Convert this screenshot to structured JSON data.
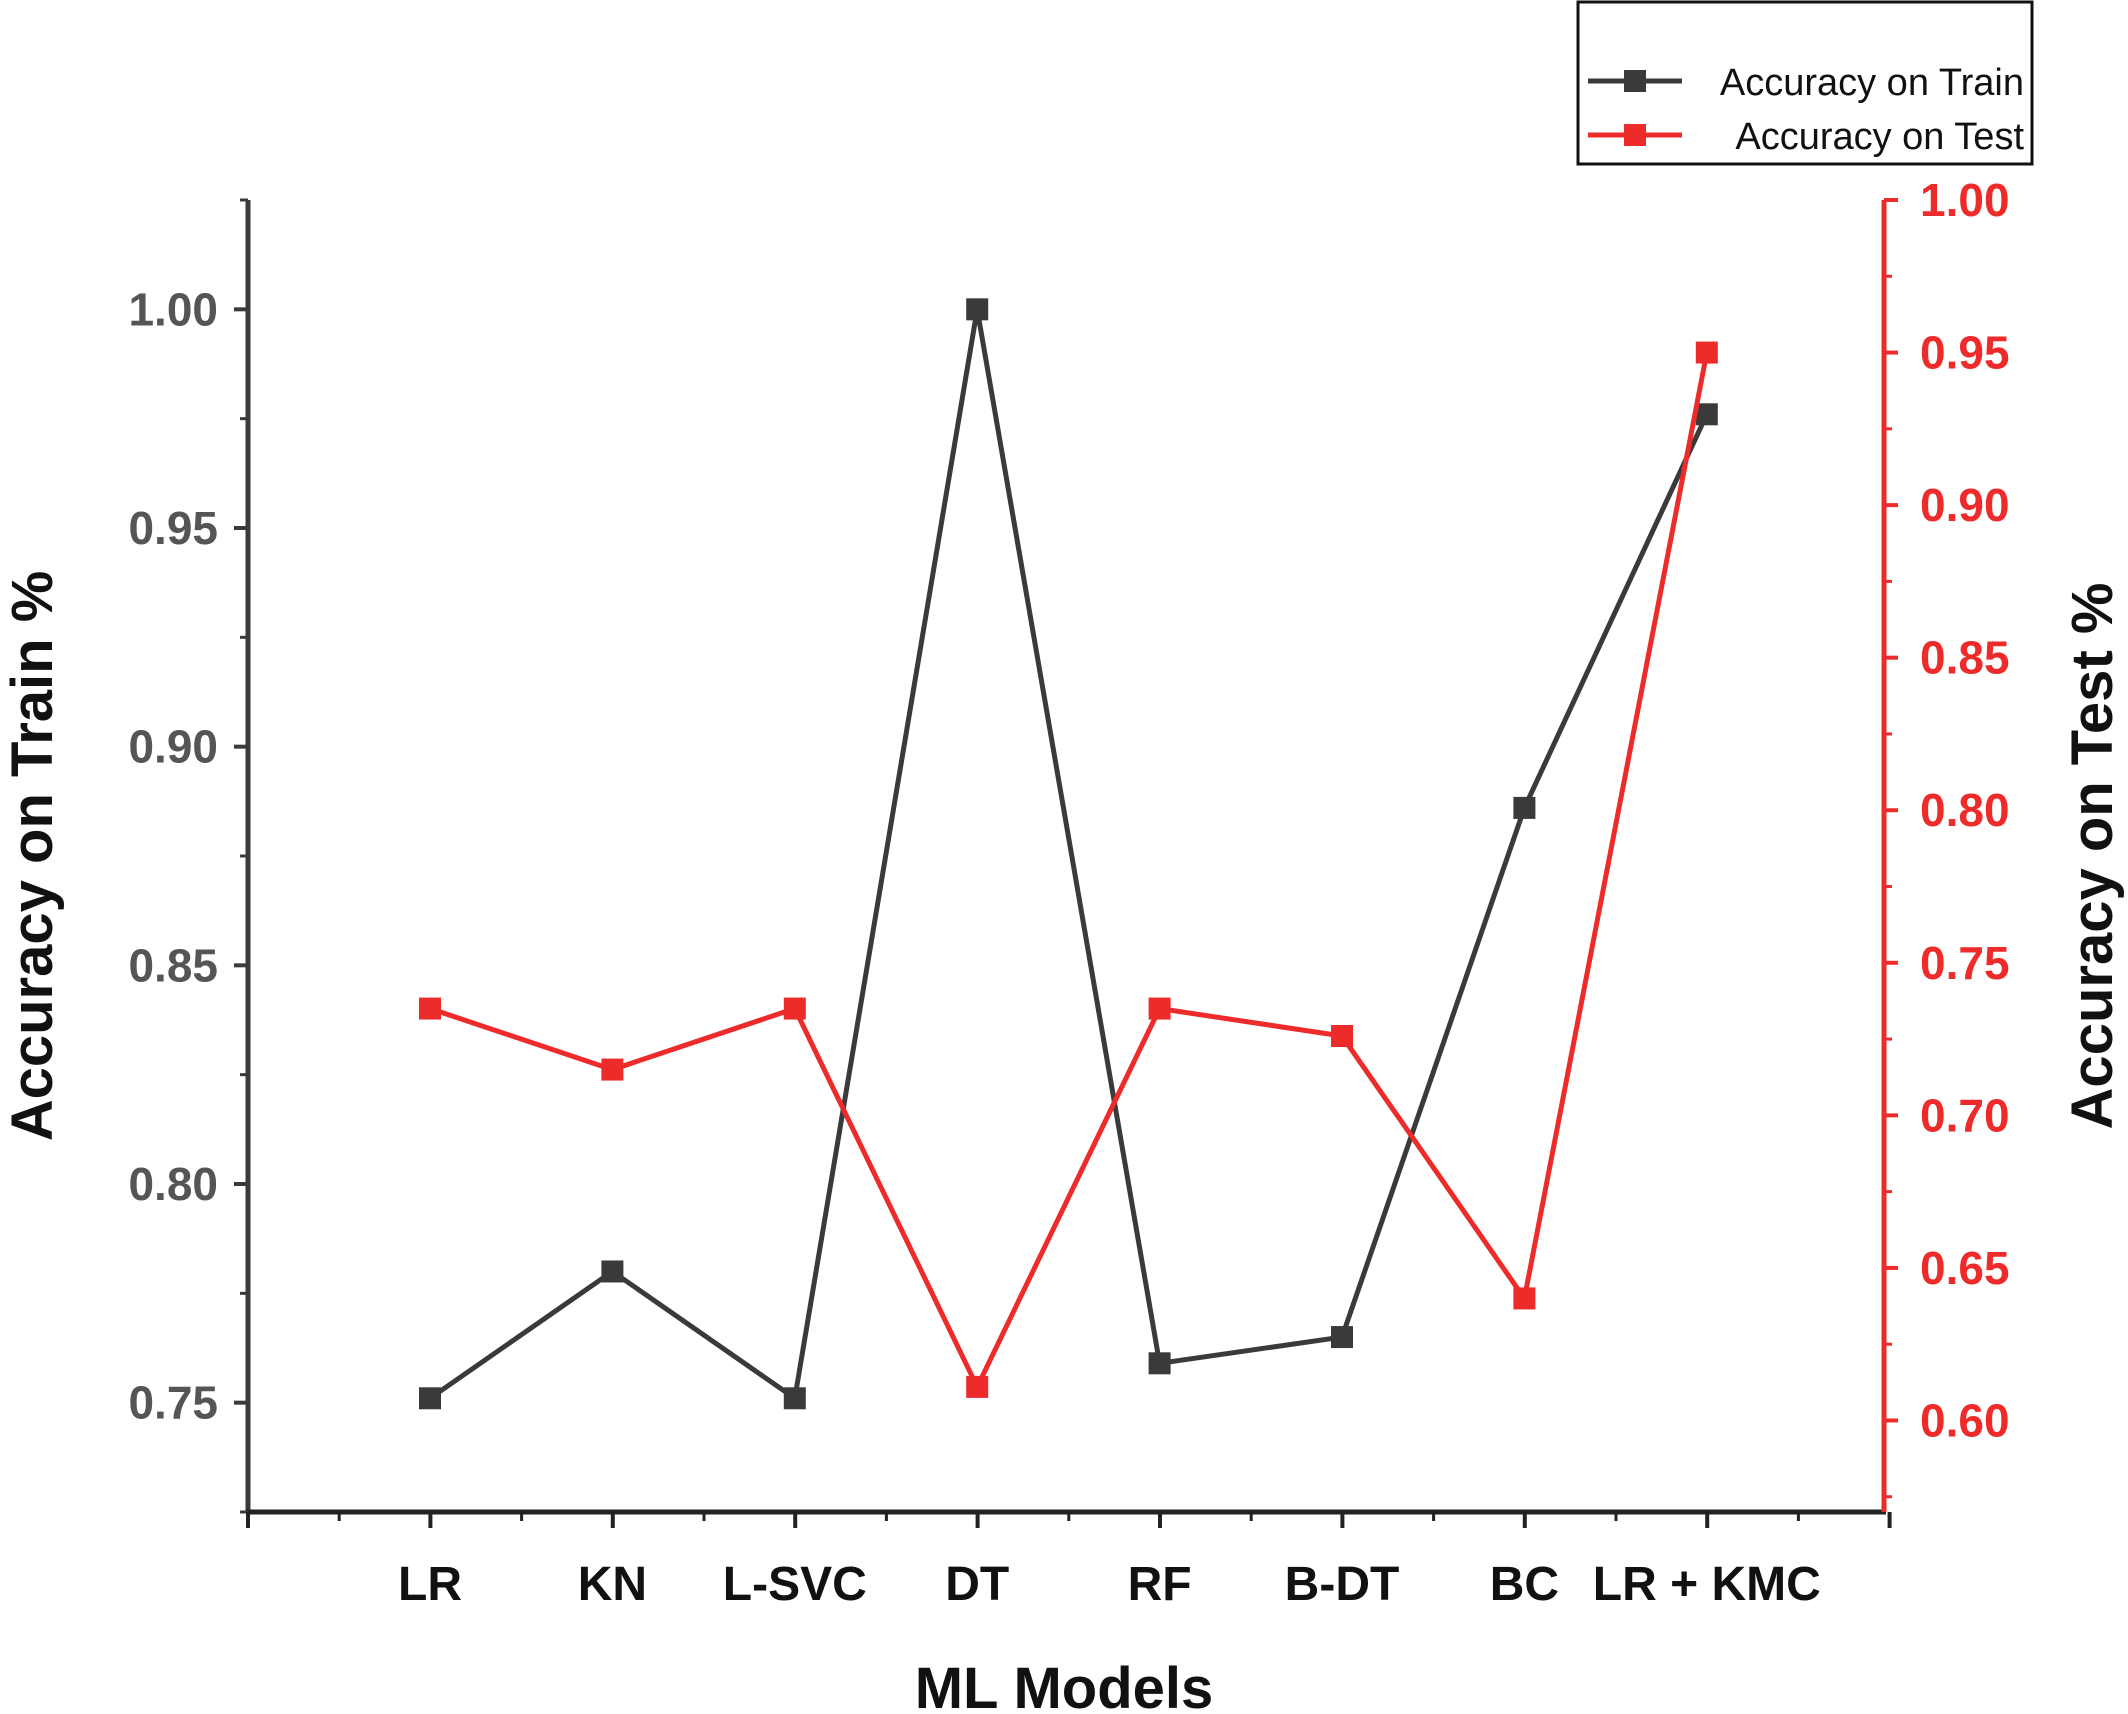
{
  "chart_data": {
    "type": "line",
    "title": "",
    "xlabel": "ML Models",
    "ylabel_left": "Accuracy on Train %",
    "ylabel_right": "Accuracy on Test %",
    "categories": [
      "LR",
      "KN",
      "L-SVC",
      "DT",
      "RF",
      "B-DT",
      "BC",
      "LR + KMC"
    ],
    "ylim_left": [
      0.725,
      1.025
    ],
    "ylim_right": [
      0.57,
      1.0
    ],
    "yticks_left": [
      "0.75",
      "0.80",
      "0.85",
      "0.90",
      "0.95",
      "1.00"
    ],
    "yticks_right": [
      "0.60",
      "0.65",
      "0.70",
      "0.75",
      "0.80",
      "0.85",
      "0.90",
      "0.95",
      "1.00"
    ],
    "series": [
      {
        "name": "Accuracy on Train",
        "axis": "left",
        "color": "#3a3a3a",
        "values": [
          0.751,
          0.78,
          0.751,
          1.0,
          0.759,
          0.765,
          0.886,
          0.976
        ]
      },
      {
        "name": "Accuracy on Test",
        "axis": "right",
        "color": "#ee2b2b",
        "values": [
          0.735,
          0.715,
          0.735,
          0.611,
          0.735,
          0.726,
          0.64,
          0.95
        ]
      }
    ],
    "legend_position": "top-right",
    "grid": false
  },
  "colors": {
    "left_axis": "#3a3a3a",
    "left_tick_text": "#555555",
    "right_axis": "#ee2b2b",
    "train": "#3a3a3a",
    "test": "#ee2b2b"
  }
}
